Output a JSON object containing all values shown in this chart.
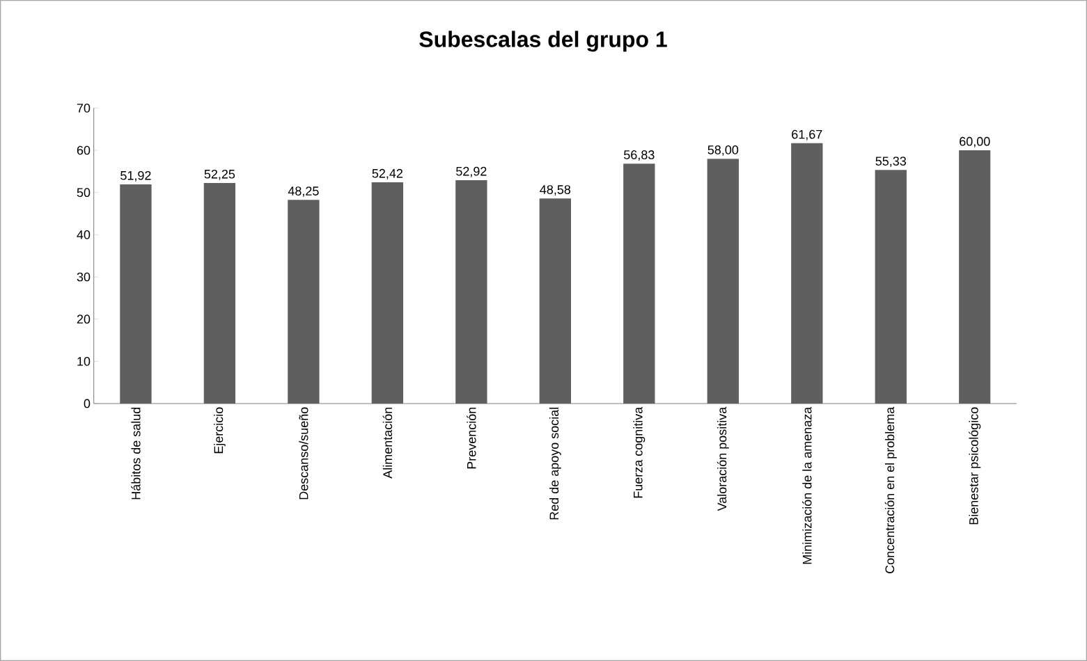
{
  "chart_data": {
    "type": "bar",
    "title": "Subescalas del grupo 1",
    "categories": [
      "Hábitos de salud",
      "Ejercicio",
      "Descanso/sueño",
      "Alimentación",
      "Prevención",
      "Red de apoyo social",
      "Fuerza cognitiva",
      "Valoración positiva",
      "Minimización de la amenaza",
      "Concentración en el problema",
      "Bienestar psicológico"
    ],
    "values": [
      51.92,
      52.25,
      48.25,
      52.42,
      52.92,
      48.58,
      56.83,
      58.0,
      61.67,
      55.33,
      60.0
    ],
    "value_labels": [
      "51,92",
      "52,25",
      "48,25",
      "52,42",
      "52,92",
      "48,58",
      "56,83",
      "58,00",
      "61,67",
      "55,33",
      "60,00"
    ],
    "color": "#5f5f5f",
    "ylim": [
      0,
      70
    ],
    "yticks": [
      0,
      10,
      20,
      30,
      40,
      50,
      60,
      70
    ]
  }
}
